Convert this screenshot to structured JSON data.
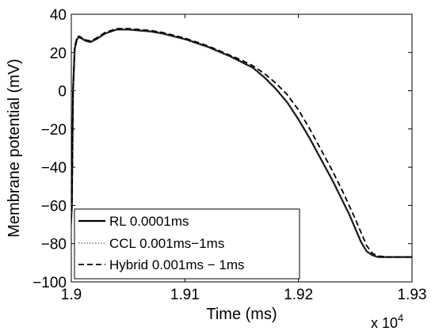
{
  "chart_data": {
    "type": "line",
    "title": "",
    "xlabel": "Time (ms)",
    "ylabel": "Membrane potential (mV)",
    "x_multiplier_base": "x 10",
    "x_multiplier_exp": "4",
    "xlim": [
      1.9,
      1.93
    ],
    "ylim": [
      -100,
      40
    ],
    "x_ticks": [
      1.9,
      1.91,
      1.92,
      1.93
    ],
    "x_tick_labels": [
      "1.9",
      "1.91",
      "1.92",
      "1.93"
    ],
    "y_ticks": [
      -100,
      -80,
      -60,
      -40,
      -20,
      0,
      20,
      40
    ],
    "y_tick_labels": [
      "−100",
      "−80",
      "−60",
      "−40",
      "−20",
      "0",
      "20",
      "40"
    ],
    "grid": false,
    "legend_position": "bottom-left",
    "series": [
      {
        "name": "RL 0.0001ms",
        "style": "solid",
        "color": "#000000",
        "x": [
          1.8998,
          1.90005,
          1.90015,
          1.9003,
          1.9005,
          1.9007,
          1.901,
          1.9013,
          1.9017,
          1.9022,
          1.903,
          1.904,
          1.905,
          1.906,
          1.907,
          1.908,
          1.909,
          1.91,
          1.911,
          1.912,
          1.913,
          1.914,
          1.915,
          1.916,
          1.917,
          1.918,
          1.919,
          1.92,
          1.921,
          1.922,
          1.923,
          1.924,
          1.9245,
          1.925,
          1.9255,
          1.926,
          1.9265,
          1.927,
          1.928,
          1.929,
          1.93
        ],
        "y": [
          -90,
          -60,
          0,
          22,
          27,
          28,
          27,
          26,
          25.5,
          27,
          30,
          32,
          32,
          31.5,
          31,
          30,
          28.5,
          27,
          25,
          23,
          20.5,
          18,
          15,
          12,
          7,
          1,
          -6,
          -15,
          -25,
          -36,
          -47,
          -59,
          -65,
          -72,
          -79,
          -84,
          -86,
          -87,
          -87,
          -87,
          -87
        ]
      },
      {
        "name": "CCL 0.001ms−1ms",
        "style": "dotted",
        "color": "#555555",
        "x": [
          1.8998,
          1.90005,
          1.90015,
          1.9003,
          1.9005,
          1.9007,
          1.901,
          1.9013,
          1.9017,
          1.9022,
          1.903,
          1.904,
          1.905,
          1.906,
          1.907,
          1.908,
          1.909,
          1.91,
          1.911,
          1.912,
          1.913,
          1.914,
          1.915,
          1.916,
          1.917,
          1.918,
          1.919,
          1.92,
          1.921,
          1.922,
          1.923,
          1.924,
          1.9245,
          1.925,
          1.9255,
          1.926,
          1.9265,
          1.927,
          1.928,
          1.929,
          1.93
        ],
        "y": [
          -90,
          -60,
          0,
          22,
          27,
          28,
          27,
          26,
          25.5,
          27,
          30,
          32,
          32,
          31.5,
          31,
          30,
          28.5,
          27,
          25,
          23,
          20.5,
          18,
          15,
          12,
          7,
          1,
          -6,
          -15,
          -25,
          -36,
          -47,
          -59,
          -65,
          -72,
          -79,
          -84,
          -86,
          -87,
          -87,
          -87,
          -87
        ]
      },
      {
        "name": "Hybrid 0.001ms − 1ms",
        "style": "dashed",
        "color": "#000000",
        "x": [
          1.8998,
          1.90005,
          1.90015,
          1.9003,
          1.9005,
          1.9007,
          1.901,
          1.9013,
          1.9017,
          1.9022,
          1.903,
          1.904,
          1.905,
          1.906,
          1.907,
          1.908,
          1.909,
          1.91,
          1.911,
          1.912,
          1.913,
          1.914,
          1.915,
          1.916,
          1.917,
          1.918,
          1.919,
          1.92,
          1.921,
          1.922,
          1.923,
          1.924,
          1.925,
          1.9255,
          1.926,
          1.9265,
          1.927,
          1.928,
          1.929,
          1.93
        ],
        "y": [
          -90,
          -60,
          0,
          23,
          28,
          28.5,
          27.5,
          26.5,
          26,
          27.5,
          30.5,
          32.5,
          32.5,
          32,
          31.5,
          30.5,
          29,
          27.5,
          25.5,
          23.5,
          21,
          18.5,
          16,
          13,
          9,
          4,
          -2,
          -10,
          -20,
          -31,
          -42,
          -54,
          -67,
          -74,
          -81,
          -85,
          -86.5,
          -87,
          -87,
          -87
        ]
      }
    ]
  }
}
